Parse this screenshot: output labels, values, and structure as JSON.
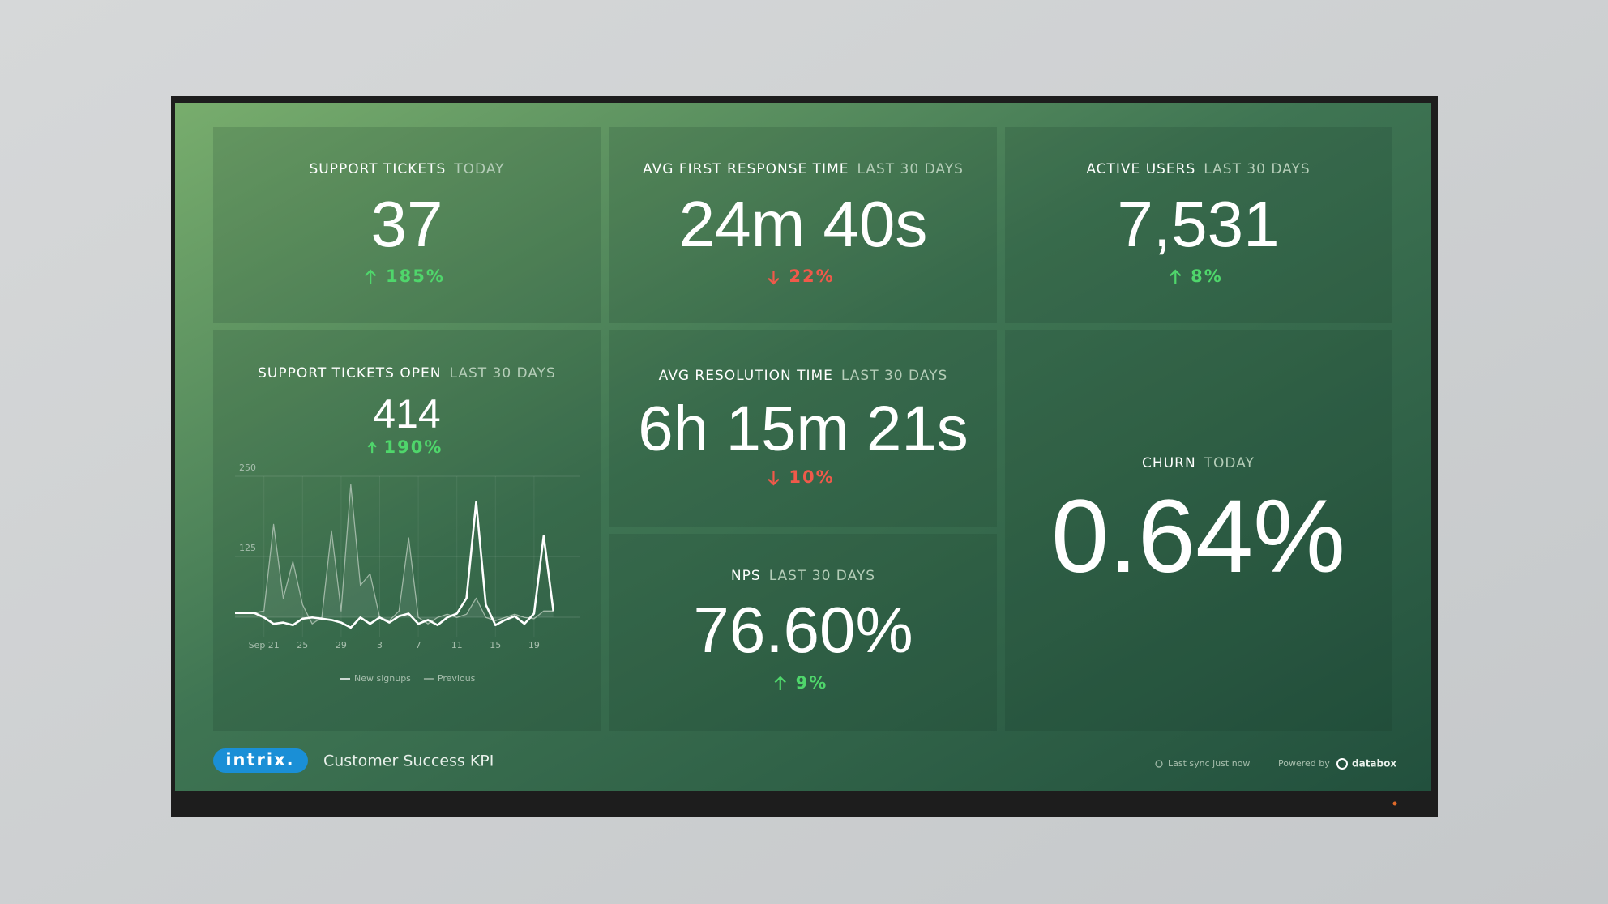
{
  "dashboard": {
    "tiles": [
      {
        "label": "SUPPORT TICKETS",
        "period": "TODAY",
        "value": "37",
        "change": "185%",
        "trend": "up"
      },
      {
        "label": "AVG FIRST RESPONSE TIME",
        "period": "LAST 30 DAYS",
        "value": "24m 40s",
        "change": "22%",
        "trend": "down"
      },
      {
        "label": "ACTIVE USERS",
        "period": "LAST 30 DAYS",
        "value": "7,531",
        "change": "8%",
        "trend": "up"
      },
      {
        "label": "SUPPORT TICKETS OPEN",
        "period": "LAST 30 DAYS",
        "value": "414",
        "change": "190%",
        "trend": "up"
      },
      {
        "label": "AVG RESOLUTION TIME",
        "period": "LAST 30 DAYS",
        "value": "6h 15m 21s",
        "change": "10%",
        "trend": "down"
      },
      {
        "label": "NPS",
        "period": "LAST 30 DAYS",
        "value": "76.60%",
        "change": "9%",
        "trend": "up"
      },
      {
        "label": "CHURN",
        "period": "TODAY",
        "value": "0.64%"
      }
    ],
    "footer": {
      "logo": "intrix.",
      "title": "Customer Success KPI",
      "sync": "Last sync just now",
      "powered": "Powered by",
      "brand": "databox"
    }
  },
  "chart_data": {
    "type": "line",
    "categories": [
      null,
      null,
      null,
      "Sep 21",
      null,
      null,
      null,
      "25",
      null,
      null,
      null,
      "29",
      null,
      null,
      null,
      "3",
      null,
      null,
      null,
      "7",
      null,
      null,
      null,
      "11",
      null,
      null,
      null,
      "15",
      null,
      null,
      null,
      "19",
      null,
      null
    ],
    "series": [
      {
        "name": "New signups",
        "color": "#ffffff",
        "values": [
          37,
          37,
          37,
          30,
          20,
          22,
          18,
          28,
          30,
          28,
          26,
          22,
          14,
          30,
          20,
          30,
          22,
          32,
          36,
          20,
          26,
          18,
          30,
          36,
          60,
          210,
          50,
          18,
          26,
          32,
          20,
          36,
          157,
          40
        ]
      },
      {
        "name": "Previous",
        "color": "#9fb7a5",
        "values": [
          37,
          37,
          37,
          40,
          175,
          60,
          117,
          50,
          20,
          30,
          165,
          40,
          237,
          80,
          98,
          30,
          25,
          40,
          154,
          30,
          20,
          30,
          35,
          30,
          35,
          60,
          30,
          25,
          30,
          35,
          30,
          28,
          40,
          40
        ]
      }
    ],
    "ylim": [
      0,
      250
    ],
    "yticks": [
      125,
      250
    ],
    "grid": true,
    "legend": "bottom"
  }
}
